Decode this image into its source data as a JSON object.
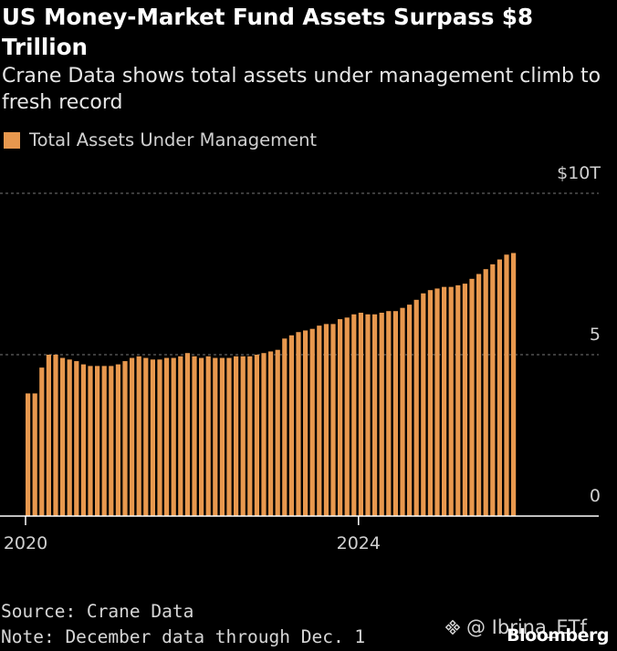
{
  "header": {
    "title": "US Money-Market Fund Assets Surpass $8 Trillion",
    "subtitle": "Crane Data shows total assets under management climb to fresh record"
  },
  "legend": {
    "label": "Total Assets Under Management",
    "color": "#e8984e"
  },
  "footer": {
    "source": "Source: Crane Data",
    "note": "Note: December data through Dec. 1",
    "brand": "Bloomberg",
    "watermark": "@ Ibrina_ETf",
    "watermark_icon": "binance-logo-icon"
  },
  "chart_data": {
    "type": "bar",
    "series": [
      {
        "name": "Total Assets Under Management",
        "color": "#e8984e",
        "x_start": "2020-01",
        "frequency": "monthly",
        "values": [
          3.8,
          3.8,
          4.6,
          5.0,
          5.0,
          4.9,
          4.85,
          4.8,
          4.7,
          4.65,
          4.65,
          4.65,
          4.65,
          4.7,
          4.8,
          4.9,
          4.95,
          4.9,
          4.85,
          4.85,
          4.9,
          4.9,
          4.95,
          5.05,
          4.95,
          4.9,
          4.95,
          4.9,
          4.9,
          4.9,
          4.95,
          4.95,
          4.95,
          5.0,
          5.05,
          5.1,
          5.15,
          5.5,
          5.6,
          5.7,
          5.75,
          5.8,
          5.9,
          5.95,
          5.95,
          6.1,
          6.15,
          6.25,
          6.3,
          6.25,
          6.25,
          6.3,
          6.35,
          6.35,
          6.45,
          6.55,
          6.7,
          6.9,
          7.0,
          7.05,
          7.1,
          7.1,
          7.15,
          7.2,
          7.35,
          7.5,
          7.65,
          7.8,
          7.95,
          8.1,
          8.15
        ]
      }
    ],
    "x_ticks": [
      {
        "label": "2020",
        "index": 0
      },
      {
        "label": "2024",
        "index": 48
      }
    ],
    "y_ticks": [
      {
        "value": 0,
        "label": "0"
      },
      {
        "value": 5,
        "label": "5"
      },
      {
        "value": 10,
        "label": "$10T"
      }
    ],
    "ylim": [
      0,
      10
    ],
    "xlabel": "",
    "ylabel": "",
    "grid": "horizontal-dashed",
    "grid_color": "#777777",
    "axis_color": "#ffffff",
    "legend_position": "top-left"
  }
}
